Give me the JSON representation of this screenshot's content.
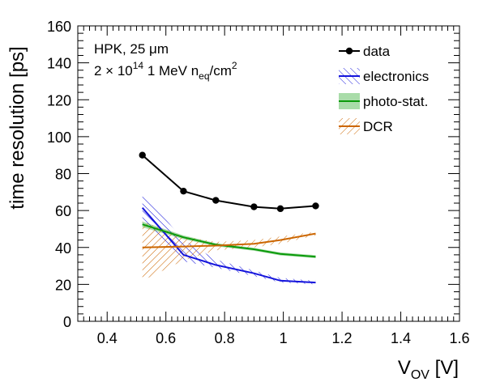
{
  "chart_data": {
    "type": "line",
    "xlabel": "V",
    "xlabel_sub": "OV",
    "xlabel_unit": " [V]",
    "ylabel": "time resolution [ps]",
    "xlim": [
      0.3,
      1.6
    ],
    "ylim": [
      0,
      160
    ],
    "x_ticks": [
      "0.4",
      "0.6",
      "0.8",
      "1",
      "1.2",
      "1.4",
      "1.6"
    ],
    "y_ticks": [
      "0",
      "20",
      "40",
      "60",
      "80",
      "100",
      "120",
      "140",
      "160"
    ],
    "annotation": {
      "line1": "HPK, 25 μm",
      "line2_a": "2 × 10",
      "line2_exp": "14",
      "line2_b": " 1 MeV n",
      "line2_sub": "eq",
      "line2_c": "/cm",
      "line2_exp2": "2"
    },
    "legend": {
      "position": "top-right",
      "entries": [
        "data",
        "electronics",
        "photo-stat.",
        "DCR"
      ]
    },
    "series": [
      {
        "name": "data",
        "color": "#000000",
        "style": "line-markers",
        "x": [
          0.52,
          0.66,
          0.77,
          0.9,
          0.99,
          1.11
        ],
        "y": [
          90,
          70.5,
          65.5,
          62,
          61,
          62.5
        ]
      },
      {
        "name": "electronics",
        "color": "#1414dc",
        "style": "band-hatch",
        "x": [
          0.52,
          0.66,
          0.77,
          0.9,
          0.99,
          1.11
        ],
        "y": [
          61.5,
          36,
          30.5,
          26,
          22,
          21
        ],
        "upper": [
          70,
          44,
          33.5,
          27.5,
          23.5,
          22
        ],
        "lower": [
          53,
          32.5,
          29,
          24.5,
          21,
          20
        ]
      },
      {
        "name": "photo-stat.",
        "color": "#0a9a0a",
        "style": "band-solid",
        "x": [
          0.52,
          0.66,
          0.77,
          0.9,
          0.99,
          1.11
        ],
        "y": [
          52.5,
          45.5,
          41.5,
          39,
          36.5,
          35
        ],
        "upper": [
          54,
          46.5,
          42.3,
          39.8,
          37.3,
          35.8
        ],
        "lower": [
          51,
          44.5,
          40.7,
          38.2,
          35.7,
          34.2
        ]
      },
      {
        "name": "DCR",
        "color": "#cc6600",
        "style": "band-hatch",
        "x": [
          0.52,
          0.66,
          0.77,
          0.9,
          0.99,
          1.11
        ],
        "y": [
          40,
          40.5,
          41,
          42,
          44,
          47.5
        ],
        "upper": [
          54,
          46,
          43,
          44,
          46,
          48.5
        ],
        "lower": [
          22,
          33,
          38.5,
          40,
          42,
          46.5
        ]
      }
    ]
  }
}
